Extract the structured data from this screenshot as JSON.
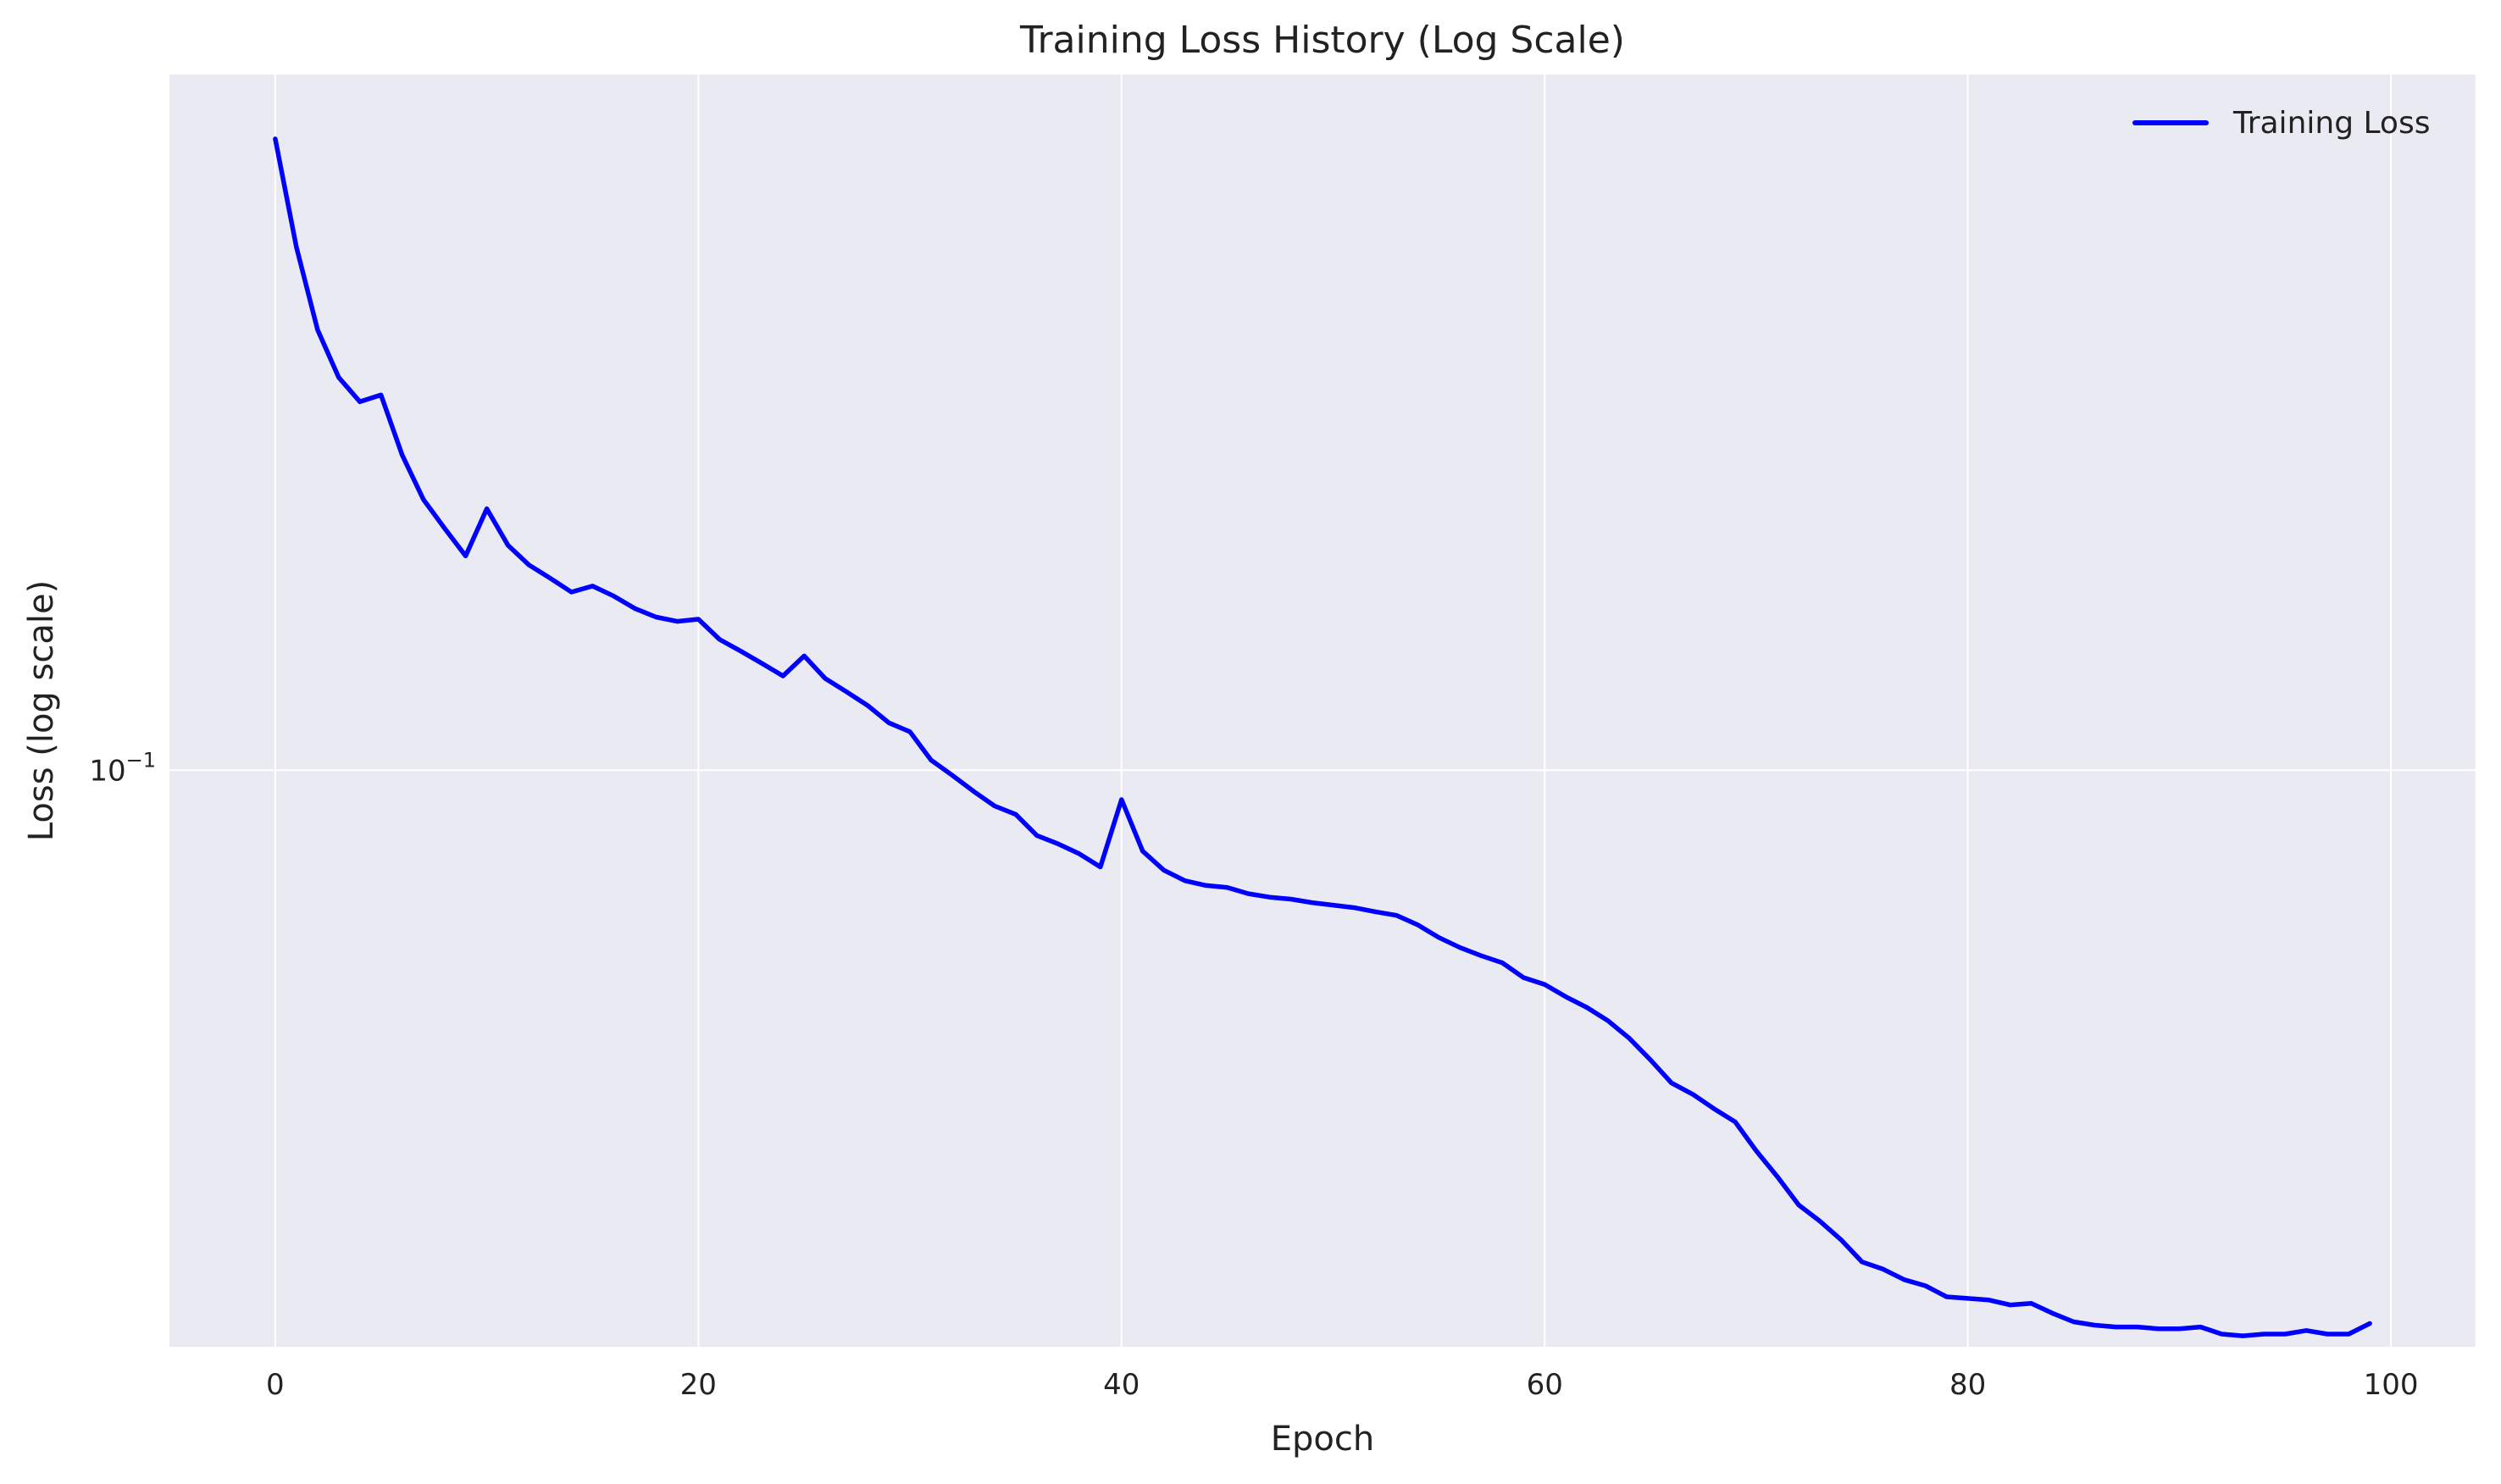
{
  "chart_data": {
    "type": "line",
    "title": "Training Loss History (Log Scale)",
    "xlabel": "Epoch",
    "ylabel": "Loss (log scale)",
    "xlim": [
      -5,
      104
    ],
    "ylim": [
      0.0183,
      0.776
    ],
    "yscale": "log",
    "grid": true,
    "legend_position": "top-right",
    "x_ticks": [
      0,
      20,
      40,
      60,
      80,
      100
    ],
    "x_tick_labels": [
      "0",
      "20",
      "40",
      "60",
      "80",
      "100"
    ],
    "y_ticks": [
      0.1
    ],
    "y_tick_labels": [
      {
        "base": "10",
        "exponent": "−1"
      }
    ],
    "colors": {
      "plot_background": "#eaeaf2",
      "grid": "#ffffff",
      "line": "#0000ff"
    },
    "series": [
      {
        "name": "Training Loss",
        "x": [
          0,
          1,
          2,
          3,
          4,
          5,
          6,
          7,
          8,
          9,
          10,
          11,
          12,
          13,
          14,
          15,
          16,
          17,
          18,
          19,
          20,
          21,
          22,
          23,
          24,
          25,
          26,
          27,
          28,
          29,
          30,
          31,
          32,
          33,
          34,
          35,
          36,
          37,
          38,
          39,
          40,
          41,
          42,
          43,
          44,
          45,
          46,
          47,
          48,
          49,
          50,
          51,
          52,
          53,
          54,
          55,
          56,
          57,
          58,
          59,
          60,
          61,
          62,
          63,
          64,
          65,
          66,
          67,
          68,
          69,
          70,
          71,
          72,
          73,
          74,
          75,
          76,
          77,
          78,
          79,
          80,
          81,
          82,
          83,
          84,
          85,
          86,
          87,
          88,
          89,
          90,
          91,
          92,
          93,
          94,
          95,
          96,
          97,
          98,
          99
        ],
        "values": [
          0.642,
          0.467,
          0.366,
          0.318,
          0.296,
          0.302,
          0.253,
          0.222,
          0.204,
          0.188,
          0.216,
          0.194,
          0.183,
          0.176,
          0.169,
          0.172,
          0.167,
          0.161,
          0.157,
          0.155,
          0.156,
          0.147,
          0.142,
          0.137,
          0.132,
          0.14,
          0.131,
          0.126,
          0.121,
          0.115,
          0.112,
          0.103,
          0.0985,
          0.094,
          0.09,
          0.0878,
          0.0825,
          0.0805,
          0.0782,
          0.0752,
          0.0917,
          0.0788,
          0.0745,
          0.0722,
          0.0712,
          0.0708,
          0.0695,
          0.0688,
          0.0684,
          0.0677,
          0.0672,
          0.0667,
          0.0659,
          0.0652,
          0.0634,
          0.0611,
          0.0593,
          0.0579,
          0.0567,
          0.0543,
          0.0532,
          0.0513,
          0.0497,
          0.0478,
          0.0454,
          0.0426,
          0.0398,
          0.0385,
          0.0369,
          0.0355,
          0.0326,
          0.0302,
          0.0278,
          0.0265,
          0.0251,
          0.0235,
          0.023,
          0.0223,
          0.0219,
          0.0212,
          0.0211,
          0.021,
          0.0207,
          0.0208,
          0.0202,
          0.0197,
          0.0195,
          0.0194,
          0.0194,
          0.0193,
          0.0193,
          0.0194,
          0.019,
          0.0189,
          0.019,
          0.019,
          0.0192,
          0.019,
          0.019,
          0.0196
        ]
      }
    ]
  }
}
